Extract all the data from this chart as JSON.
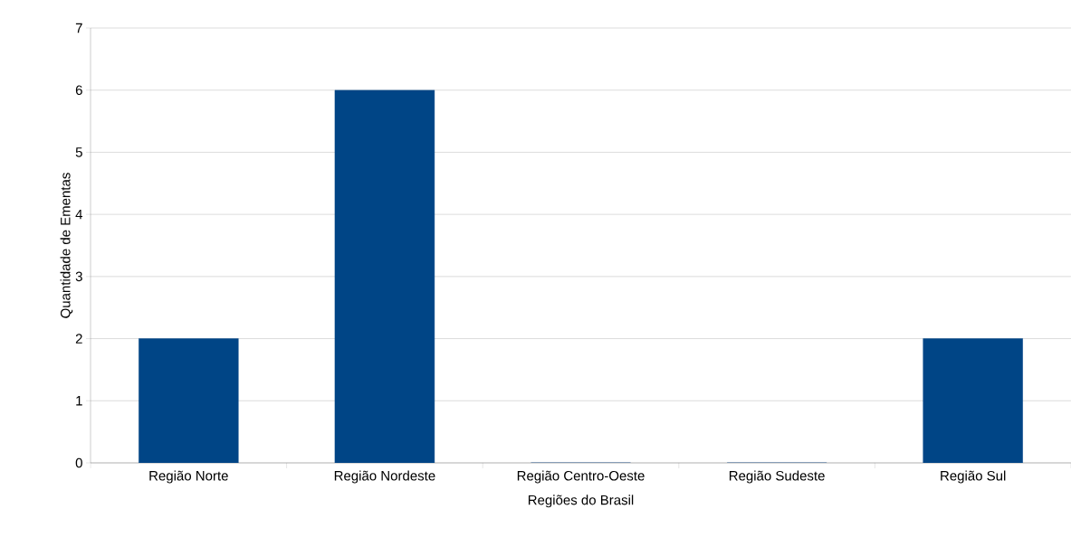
{
  "chart_data": {
    "type": "bar",
    "xlabel": "Regiões do Brasil",
    "ylabel": "Quantidade de Ementas",
    "categories": [
      "Região Norte",
      "Região Nordeste",
      "Região Centro-Oeste",
      "Região Sudeste",
      "Região Sul"
    ],
    "values": [
      2,
      6,
      0,
      0,
      2
    ],
    "color": "#004586",
    "ylim": [
      0,
      7
    ],
    "yticks": [
      0,
      1,
      2,
      3,
      4,
      5,
      6,
      7
    ],
    "grid": "y"
  }
}
